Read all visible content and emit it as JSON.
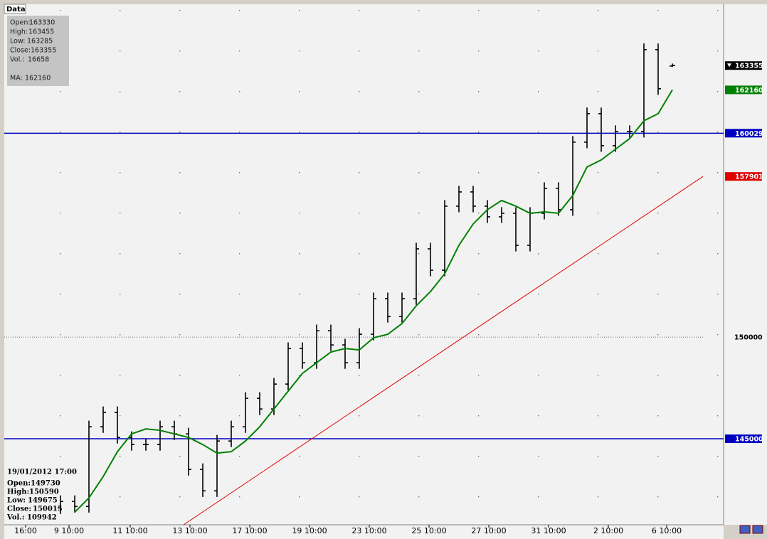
{
  "chart_data": {
    "type": "ohlc",
    "panel_title": "Data",
    "x": [
      0,
      1,
      2,
      3,
      4,
      5,
      6,
      7,
      8,
      9,
      10,
      11,
      12,
      13,
      14,
      15,
      16,
      17,
      18,
      19,
      20,
      21,
      22,
      23,
      24,
      25,
      26,
      27,
      28,
      29,
      30,
      31,
      32,
      33,
      34,
      35,
      36,
      37,
      38,
      39,
      40,
      41,
      42,
      43
    ],
    "open": [
      141600,
      141915,
      141670,
      145590,
      146290,
      145065,
      144715,
      144715,
      145590,
      145240,
      143490,
      142440,
      144890,
      145590,
      146990,
      146465,
      147690,
      149440,
      148740,
      150315,
      149615,
      148740,
      150140,
      151890,
      151015,
      151890,
      154340,
      153290,
      156440,
      157140,
      156440,
      155915,
      156090,
      154515,
      156090,
      157315,
      156265,
      159590,
      160990,
      159415,
      160115,
      160115,
      164140,
      163330
    ],
    "high": [
      142215,
      142215,
      145890,
      146590,
      146590,
      145365,
      145015,
      145890,
      145890,
      145540,
      143790,
      145190,
      145890,
      147290,
      147290,
      147990,
      149740,
      149740,
      150615,
      150615,
      149915,
      150440,
      152190,
      152190,
      152190,
      154640,
      154640,
      156740,
      157440,
      157440,
      156740,
      156390,
      156390,
      156390,
      157615,
      157615,
      159890,
      161290,
      161290,
      160415,
      160415,
      164440,
      164440,
      163455
    ],
    "low": [
      141300,
      141370,
      141370,
      145290,
      144765,
      144415,
      144415,
      144415,
      144940,
      143190,
      142140,
      142140,
      144590,
      145290,
      146165,
      146165,
      147390,
      148440,
      148440,
      149315,
      148440,
      148440,
      149840,
      150715,
      150715,
      151590,
      152990,
      152990,
      156140,
      156140,
      155615,
      155615,
      154215,
      154215,
      155790,
      155965,
      155965,
      159290,
      159115,
      159115,
      159815,
      159815,
      161915,
      163285
    ],
    "close": [
      141915,
      141670,
      145590,
      146290,
      145065,
      144715,
      144715,
      145590,
      145240,
      143490,
      142440,
      144890,
      145590,
      146990,
      146465,
      147690,
      149440,
      148740,
      150315,
      149615,
      148740,
      150140,
      151890,
      151015,
      151890,
      154340,
      153290,
      156440,
      157140,
      156440,
      155915,
      156090,
      154515,
      156090,
      157315,
      156265,
      159590,
      160990,
      159415,
      160115,
      160115,
      164140,
      162215,
      163355
    ],
    "color": "#000000",
    "xlim": [
      -3.95,
      46.6
    ],
    "xticks": [
      {
        "value": -2.45,
        "label": "16:00"
      },
      {
        "value": 0.6,
        "label": "9 10:00"
      },
      {
        "value": 4.9,
        "label": "11 10:00"
      },
      {
        "value": 9.1,
        "label": "13 10:00"
      },
      {
        "value": 13.3,
        "label": "17 10:00"
      },
      {
        "value": 17.5,
        "label": "19 10:00"
      },
      {
        "value": 21.7,
        "label": "23 10:00"
      },
      {
        "value": 25.9,
        "label": "25 10:00"
      },
      {
        "value": 30.1,
        "label": "27 10:00"
      },
      {
        "value": 34.3,
        "label": "31 10:00"
      },
      {
        "value": 38.5,
        "label": "2 10:00"
      },
      {
        "value": 42.6,
        "label": "6 10:00"
      }
    ],
    "ylim": [
      140770,
      166370
    ],
    "yticks": [
      150000
    ],
    "ma": {
      "name": "MA:",
      "color": "#008000",
      "values": [
        null,
        141390,
        142090,
        143140,
        144365,
        145240,
        145485,
        145415,
        145240,
        145065,
        144715,
        144295,
        144365,
        144890,
        145590,
        146465,
        147340,
        148215,
        148740,
        149265,
        149440,
        149370,
        149965,
        150140,
        150665,
        151540,
        152240,
        153115,
        154515,
        155565,
        156265,
        156720,
        156440,
        156090,
        156160,
        156090,
        156965,
        158365,
        158715,
        159240,
        159765,
        160640,
        160990,
        162160
      ]
    },
    "levels": [
      {
        "value": 160029,
        "color": "#0000c0"
      },
      {
        "value": 145000,
        "color": "#0000c0"
      }
    ],
    "trendline": {
      "x": [
        8.65,
        45.15
      ],
      "values": [
        140770,
        157901
      ],
      "color": "#e00000"
    },
    "info": {
      "labels": [
        "Open:",
        "High:",
        "Low:",
        "Close:",
        "Vol.:"
      ],
      "volume": 16658
    },
    "cursor": {
      "date": "19/01/2012 17:00",
      "open": 149730,
      "high": 150590,
      "low": 149675,
      "close": 150015,
      "volume": 109942
    }
  }
}
